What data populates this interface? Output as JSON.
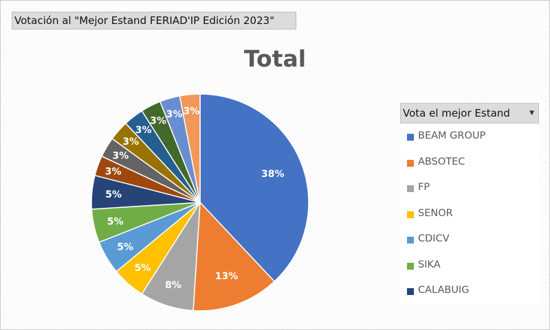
{
  "header": {
    "label": "Votación al \"Mejor Estand FERIAD'IP Edición 2023\""
  },
  "chart_data": {
    "type": "pie",
    "title": "Total",
    "legend_title": "Vota el mejor Estand",
    "legend_placement": "right",
    "slices": [
      {
        "name": "BEAM GROUP",
        "value": 38,
        "label": "38%",
        "color": "#4472C4"
      },
      {
        "name": "ABSOTEC",
        "value": 13,
        "label": "13%",
        "color": "#ED7D31"
      },
      {
        "name": "FP",
        "value": 8,
        "label": "8%",
        "color": "#A5A5A5"
      },
      {
        "name": "SENOR",
        "value": 5,
        "label": "5%",
        "color": "#FFC000"
      },
      {
        "name": "CDICV",
        "value": 5,
        "label": "5%",
        "color": "#5B9BD5"
      },
      {
        "name": "SIKA",
        "value": 5,
        "label": "5%",
        "color": "#70AD47"
      },
      {
        "name": "CALABUIG",
        "value": 5,
        "label": "5%",
        "color": "#264478"
      },
      {
        "name": "",
        "value": 3,
        "label": "3%",
        "color": "#9E480E"
      },
      {
        "name": "",
        "value": 3,
        "label": "3%",
        "color": "#636363"
      },
      {
        "name": "",
        "value": 3,
        "label": "3%",
        "color": "#997300"
      },
      {
        "name": "",
        "value": 3,
        "label": "3%",
        "color": "#255E91"
      },
      {
        "name": "",
        "value": 3,
        "label": "3%",
        "color": "#43682B"
      },
      {
        "name": "",
        "value": 3,
        "label": "3%",
        "color": "#698ED0"
      },
      {
        "name": "",
        "value": 3,
        "label": "3%",
        "color": "#F1975A"
      }
    ]
  }
}
